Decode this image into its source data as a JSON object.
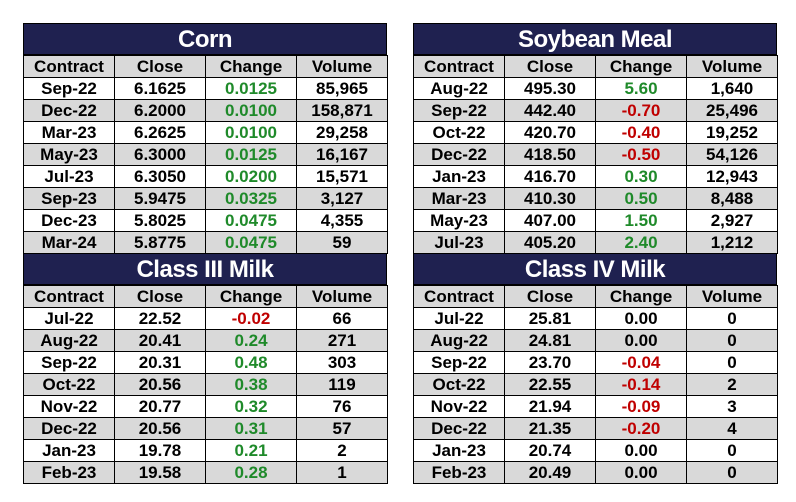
{
  "tables": [
    {
      "title": "Corn",
      "headers": [
        "Contract",
        "Close",
        "Change",
        "Volume"
      ],
      "rows": [
        {
          "contract": "Sep-22",
          "close": "6.1625",
          "change": "0.0125",
          "dir": "pos",
          "volume": "85,965"
        },
        {
          "contract": "Dec-22",
          "close": "6.2000",
          "change": "0.0100",
          "dir": "pos",
          "volume": "158,871"
        },
        {
          "contract": "Mar-23",
          "close": "6.2625",
          "change": "0.0100",
          "dir": "pos",
          "volume": "29,258"
        },
        {
          "contract": "May-23",
          "close": "6.3000",
          "change": "0.0125",
          "dir": "pos",
          "volume": "16,167"
        },
        {
          "contract": "Jul-23",
          "close": "6.3050",
          "change": "0.0200",
          "dir": "pos",
          "volume": "15,571"
        },
        {
          "contract": "Sep-23",
          "close": "5.9475",
          "change": "0.0325",
          "dir": "pos",
          "volume": "3,127"
        },
        {
          "contract": "Dec-23",
          "close": "5.8025",
          "change": "0.0475",
          "dir": "pos",
          "volume": "4,355"
        },
        {
          "contract": "Mar-24",
          "close": "5.8775",
          "change": "0.0475",
          "dir": "pos",
          "volume": "59"
        }
      ]
    },
    {
      "title": "Soybean Meal",
      "headers": [
        "Contract",
        "Close",
        "Change",
        "Volume"
      ],
      "rows": [
        {
          "contract": "Aug-22",
          "close": "495.30",
          "change": "5.60",
          "dir": "pos",
          "volume": "1,640"
        },
        {
          "contract": "Sep-22",
          "close": "442.40",
          "change": "-0.70",
          "dir": "neg",
          "volume": "25,496"
        },
        {
          "contract": "Oct-22",
          "close": "420.70",
          "change": "-0.40",
          "dir": "neg",
          "volume": "19,252"
        },
        {
          "contract": "Dec-22",
          "close": "418.50",
          "change": "-0.50",
          "dir": "neg",
          "volume": "54,126"
        },
        {
          "contract": "Jan-23",
          "close": "416.70",
          "change": "0.30",
          "dir": "pos",
          "volume": "12,943"
        },
        {
          "contract": "Mar-23",
          "close": "410.30",
          "change": "0.50",
          "dir": "pos",
          "volume": "8,488"
        },
        {
          "contract": "May-23",
          "close": "407.00",
          "change": "1.50",
          "dir": "pos",
          "volume": "2,927"
        },
        {
          "contract": "Jul-23",
          "close": "405.20",
          "change": "2.40",
          "dir": "pos",
          "volume": "1,212"
        }
      ]
    },
    {
      "title": "Class III Milk",
      "headers": [
        "Contract",
        "Close",
        "Change",
        "Volume"
      ],
      "rows": [
        {
          "contract": "Jul-22",
          "close": "22.52",
          "change": "-0.02",
          "dir": "neg",
          "volume": "66"
        },
        {
          "contract": "Aug-22",
          "close": "20.41",
          "change": "0.24",
          "dir": "pos",
          "volume": "271"
        },
        {
          "contract": "Sep-22",
          "close": "20.31",
          "change": "0.48",
          "dir": "pos",
          "volume": "303"
        },
        {
          "contract": "Oct-22",
          "close": "20.56",
          "change": "0.38",
          "dir": "pos",
          "volume": "119"
        },
        {
          "contract": "Nov-22",
          "close": "20.77",
          "change": "0.32",
          "dir": "pos",
          "volume": "76"
        },
        {
          "contract": "Dec-22",
          "close": "20.56",
          "change": "0.31",
          "dir": "pos",
          "volume": "57"
        },
        {
          "contract": "Jan-23",
          "close": "19.78",
          "change": "0.21",
          "dir": "pos",
          "volume": "2"
        },
        {
          "contract": "Feb-23",
          "close": "19.58",
          "change": "0.28",
          "dir": "pos",
          "volume": "1"
        }
      ]
    },
    {
      "title": "Class IV Milk",
      "headers": [
        "Contract",
        "Close",
        "Change",
        "Volume"
      ],
      "rows": [
        {
          "contract": "Jul-22",
          "close": "25.81",
          "change": "0.00",
          "dir": "zero",
          "volume": "0"
        },
        {
          "contract": "Aug-22",
          "close": "24.81",
          "change": "0.00",
          "dir": "zero",
          "volume": "0"
        },
        {
          "contract": "Sep-22",
          "close": "23.70",
          "change": "-0.04",
          "dir": "neg",
          "volume": "0"
        },
        {
          "contract": "Oct-22",
          "close": "22.55",
          "change": "-0.14",
          "dir": "neg",
          "volume": "2"
        },
        {
          "contract": "Nov-22",
          "close": "21.94",
          "change": "-0.09",
          "dir": "neg",
          "volume": "3"
        },
        {
          "contract": "Dec-22",
          "close": "21.35",
          "change": "-0.20",
          "dir": "neg",
          "volume": "4"
        },
        {
          "contract": "Jan-23",
          "close": "20.74",
          "change": "0.00",
          "dir": "zero",
          "volume": "0"
        },
        {
          "contract": "Feb-23",
          "close": "20.49",
          "change": "0.00",
          "dir": "zero",
          "volume": "0"
        }
      ]
    }
  ],
  "colors": {
    "title_bg": "#1f2150",
    "positive": "#1f8a2a",
    "negative": "#c00000",
    "stripe": "#d9d9d9"
  }
}
